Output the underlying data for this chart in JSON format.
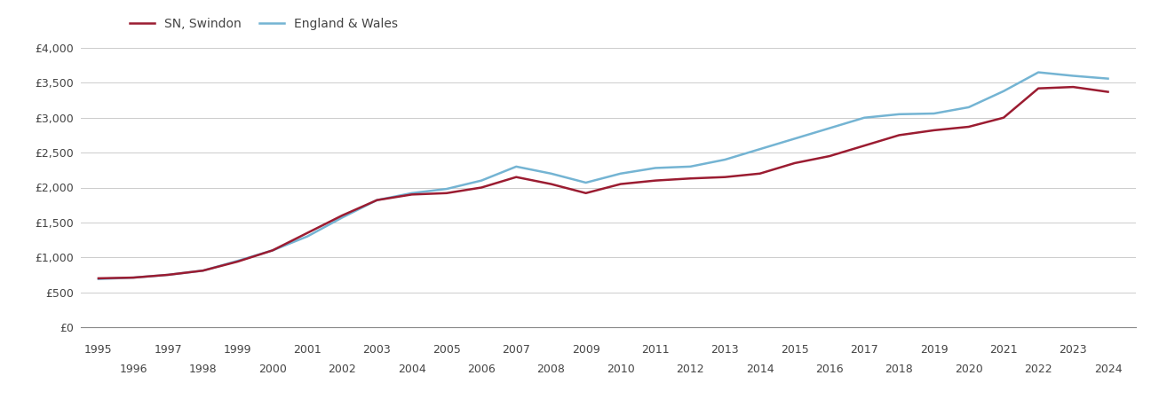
{
  "swindon_years": [
    1995,
    1996,
    1997,
    1998,
    1999,
    2000,
    2001,
    2002,
    2003,
    2004,
    2005,
    2006,
    2007,
    2008,
    2009,
    2010,
    2011,
    2012,
    2013,
    2014,
    2015,
    2016,
    2017,
    2018,
    2019,
    2020,
    2021,
    2022,
    2023,
    2024
  ],
  "swindon_values": [
    700,
    710,
    750,
    810,
    940,
    1100,
    1350,
    1600,
    1820,
    1900,
    1920,
    2000,
    2150,
    2050,
    1920,
    2050,
    2100,
    2130,
    2150,
    2200,
    2350,
    2450,
    2600,
    2750,
    2820,
    2870,
    3000,
    3420,
    3440,
    3370
  ],
  "england_years": [
    1995,
    1996,
    1997,
    1998,
    1999,
    2000,
    2001,
    2002,
    2003,
    2004,
    2005,
    2006,
    2007,
    2008,
    2009,
    2010,
    2011,
    2012,
    2013,
    2014,
    2015,
    2016,
    2017,
    2018,
    2019,
    2020,
    2021,
    2022,
    2023,
    2024
  ],
  "england_values": [
    690,
    710,
    750,
    810,
    950,
    1100,
    1300,
    1570,
    1820,
    1920,
    1980,
    2100,
    2300,
    2200,
    2070,
    2200,
    2280,
    2300,
    2400,
    2550,
    2700,
    2850,
    3000,
    3050,
    3060,
    3150,
    3380,
    3650,
    3600,
    3560
  ],
  "swindon_color": "#9b1c31",
  "england_color": "#74b4d3",
  "swindon_label": "SN, Swindon",
  "england_label": "England & Wales",
  "ylim": [
    0,
    4000
  ],
  "yticks": [
    0,
    500,
    1000,
    1500,
    2000,
    2500,
    3000,
    3500,
    4000
  ],
  "ytick_labels": [
    "£0",
    "£500",
    "£1,000",
    "£1,500",
    "£2,000",
    "£2,500",
    "£3,000",
    "£3,500",
    "£4,000"
  ],
  "xticks_odd": [
    1995,
    1997,
    1999,
    2001,
    2003,
    2005,
    2007,
    2009,
    2011,
    2013,
    2015,
    2017,
    2019,
    2021,
    2023
  ],
  "xticks_even": [
    1996,
    1998,
    2000,
    2002,
    2004,
    2006,
    2008,
    2010,
    2012,
    2014,
    2016,
    2018,
    2020,
    2022,
    2024
  ],
  "line_width": 1.8,
  "background_color": "#ffffff",
  "grid_color": "#cccccc",
  "xlim": [
    1994.5,
    2024.8
  ]
}
